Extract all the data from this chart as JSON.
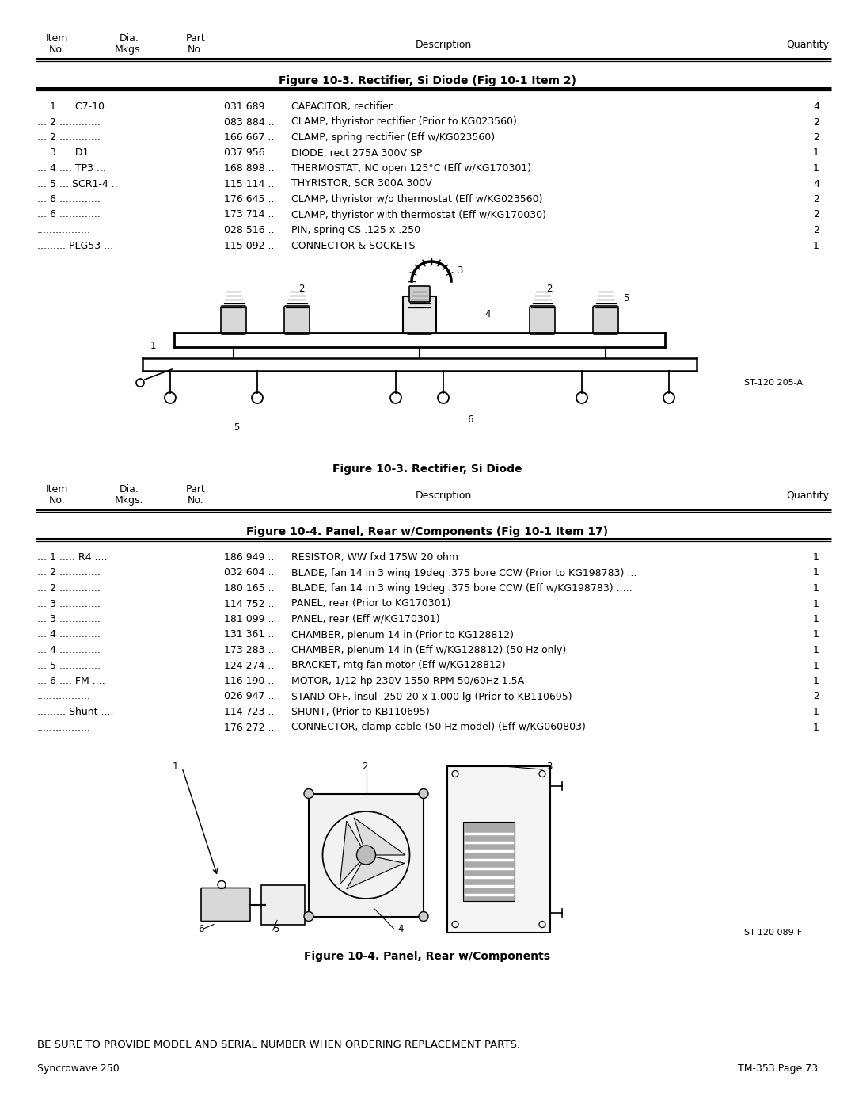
{
  "page_bg": "#ffffff",
  "fig103_title": "Figure 10-3. Rectifier, Si Diode (Fig 10-1 Item 2)",
  "fig103_caption": "Figure 10-3. Rectifier, Si Diode",
  "fig103_stamp": "ST-120 205-A",
  "fig103_rows": [
    [
      "... 1 .... C7-10 ..",
      "031 689 ..",
      "CAPACITOR, rectifier                                       ",
      "4"
    ],
    [
      "... 2 .............",
      "083 884 ..",
      "CLAMP, thyristor rectifier (Prior to KG023560)                 ",
      "2"
    ],
    [
      "... 2 .............",
      "166 667 ..",
      "CLAMP, spring rectifier (Eff w/KG023560)                     ",
      "2"
    ],
    [
      "... 3 .... D1 ....",
      "037 956 ..",
      "DIODE, rect 275A 300V SP                                   ",
      "1"
    ],
    [
      "... 4 .... TP3 ...",
      "168 898 ..",
      "THERMOSTAT, NC open 125°C (Eff w/KG170301)               ",
      "1"
    ],
    [
      "... 5 ... SCR1-4 ..",
      "115 114 ..",
      "THYRISTOR, SCR 300A 300V                                  ",
      "4"
    ],
    [
      "... 6 .............",
      "176 645 ..",
      "CLAMP, thyristor w/o thermostat (Eff w/KG023560)              ",
      "2"
    ],
    [
      "... 6 .............",
      "173 714 ..",
      "CLAMP, thyristor with thermostat (Eff w/KG170030)              ",
      "2"
    ],
    [
      ".................",
      "028 516 ..",
      "PIN, spring CS .125 x .250                                  ",
      "2"
    ],
    [
      "......... PLG53 ...",
      "115 092 ..",
      "CONNECTOR & SOCKETS                                        ",
      "1"
    ]
  ],
  "fig104_title": "Figure 10-4. Panel, Rear w/Components (Fig 10-1 Item 17)",
  "fig104_caption": "Figure 10-4. Panel, Rear w/Components",
  "fig104_stamp": "ST-120 089-F",
  "fig104_rows": [
    [
      "... 1 ..... R4 ....",
      "186 949 ..",
      "RESISTOR, WW fxd 175W 20 ohm                            ",
      "1"
    ],
    [
      "... 2 .............",
      "032 604 ..",
      "BLADE, fan 14 in 3 wing 19deg .375 bore CCW (Prior to KG198783) ...",
      "1"
    ],
    [
      "... 2 .............",
      "180 165 ..",
      "BLADE, fan 14 in 3 wing 19deg .375 bore CCW (Eff w/KG198783) .....",
      "1"
    ],
    [
      "... 3 .............",
      "114 752 ..",
      "PANEL, rear (Prior to KG170301)                              ",
      "1"
    ],
    [
      "... 3 .............",
      "181 099 ..",
      "PANEL, rear (Eff w/KG170301)                                  ",
      "1"
    ],
    [
      "... 4 .............",
      "131 361 ..",
      "CHAMBER, plenum 14 in (Prior to KG128812)                    ",
      "1"
    ],
    [
      "... 4 .............",
      "173 283 ..",
      "CHAMBER, plenum 14 in (Eff w/KG128812) (50 Hz only)            ",
      "1"
    ],
    [
      "... 5 .............",
      "124 274 ..",
      "BRACKET, mtg fan motor (Eff w/KG128812)                      ",
      "1"
    ],
    [
      "... 6 .... FM ....",
      "116 190 ..",
      "MOTOR, 1/12 hp 230V 1550 RPM 50/60Hz 1.5A                   ",
      "1"
    ],
    [
      ".................",
      "026 947 ..",
      "STAND-OFF, insul .250-20 x 1.000 lg (Prior to KB110695)          ",
      "2"
    ],
    [
      "......... Shunt ....",
      "114 723 ..",
      "SHUNT, (Prior to KB110695)                                      ",
      "1"
    ],
    [
      ".................",
      "176 272 ..",
      "CONNECTOR, clamp cable (50 Hz model) (Eff w/KG060803)         ",
      "1"
    ]
  ],
  "footer_left": "Syncrowave 250",
  "footer_right": "TM-353 Page 73",
  "footer_bottom": "BE SURE TO PROVIDE MODEL AND SERIAL NUMBER WHEN ORDERING REPLACEMENT PARTS."
}
